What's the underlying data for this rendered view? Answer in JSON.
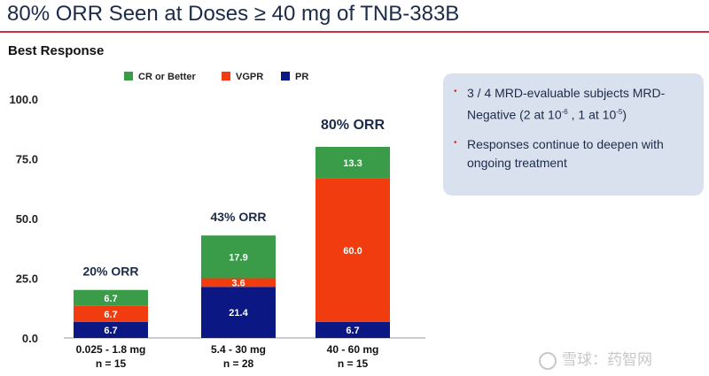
{
  "slide": {
    "title": "80% ORR Seen at Doses ≥ 40 mg of TNB-383B",
    "chart_heading": "Best Response"
  },
  "colors": {
    "cr": "#3a9b49",
    "vgpr": "#f03c0e",
    "pr": "#0b1783",
    "accent": "#c8343c",
    "callout_bg": "#d9e1ef"
  },
  "chart_data": {
    "type": "bar",
    "stacked": true,
    "title": "Best Response",
    "categories": [
      "0.025 - 1.8 mg",
      "5.4 - 30 mg",
      "40 - 60 mg"
    ],
    "category_sublabels": [
      "n = 15",
      "n = 28",
      "n = 15"
    ],
    "series": [
      {
        "name": "PR",
        "color": "#0b1783",
        "values": [
          6.7,
          21.4,
          6.7
        ]
      },
      {
        "name": "VGPR",
        "color": "#f03c0e",
        "values": [
          6.7,
          3.6,
          60.0
        ]
      },
      {
        "name": "CR or Better",
        "color": "#3a9b49",
        "values": [
          6.7,
          17.9,
          13.3
        ]
      }
    ],
    "bar_labels": [
      [
        "6.7",
        "6.7",
        "6.7"
      ],
      [
        "21.4",
        "3.6",
        "17.9"
      ],
      [
        "6.7",
        "60.0",
        "13.3"
      ]
    ],
    "annotations": [
      "20% ORR",
      "43% ORR",
      "80% ORR"
    ],
    "legend": [
      "CR or Better",
      "VGPR",
      "PR"
    ],
    "legend_position": "top",
    "y_ticks": [
      "0.0",
      "25.0",
      "50.0",
      "75.0",
      "100.0"
    ],
    "ylim": [
      0,
      100
    ],
    "xlabel": "",
    "ylabel": ""
  },
  "callout": {
    "bullet1_pre": "3 / 4 MRD-evaluable subjects MRD-Negative (2 at 10",
    "bullet1_sup1": "-6",
    "bullet1_mid": " , 1 at 10",
    "bullet1_sup2": "-5",
    "bullet1_post": ")",
    "bullet2": "Responses continue to deepen with ongoing treatment",
    "bullet_mark": "•"
  },
  "watermark": {
    "text": "雪球：药智网"
  }
}
